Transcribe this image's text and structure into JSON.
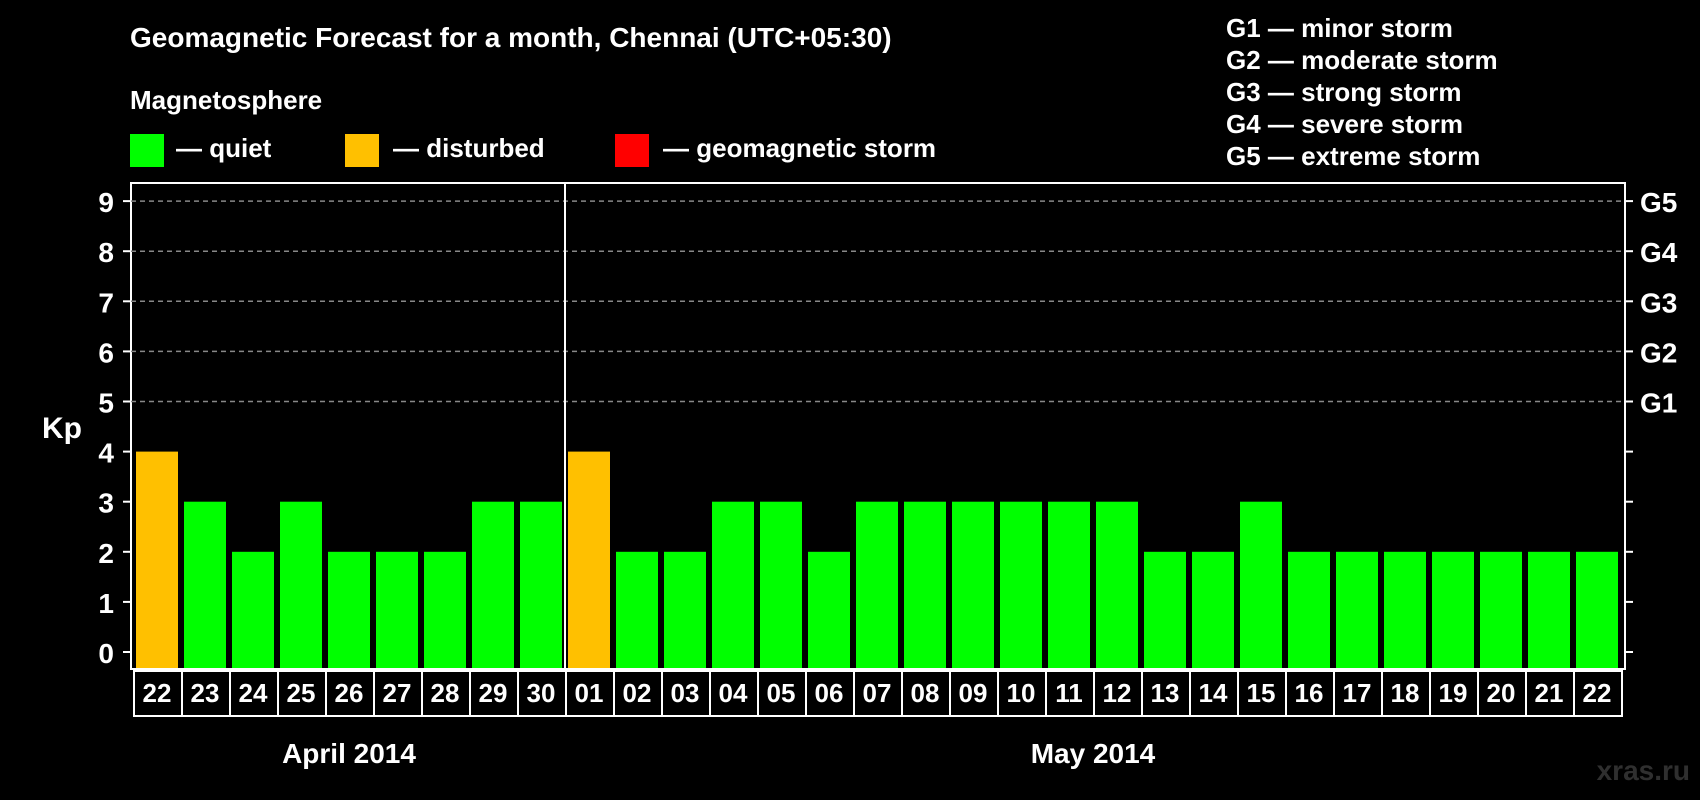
{
  "title": "Geomagnetic Forecast for a month, Chennai (UTC+05:30)",
  "magnetosphere_label": "Magnetosphere",
  "legend": [
    {
      "key": "quiet",
      "label": "— quiet",
      "color": "#00FF00"
    },
    {
      "key": "disturbed",
      "label": "— disturbed",
      "color": "#FFC000"
    },
    {
      "key": "storm",
      "label": "— geomagnetic storm",
      "color": "#FF0000"
    }
  ],
  "storm_legend": [
    "G1 — minor storm",
    "G2 — moderate storm",
    "G3 — strong storm",
    "G4 — severe storm",
    "G5 — extreme storm"
  ],
  "watermark": "xras.ru",
  "chart_data": {
    "type": "bar",
    "ylabel": "Kp",
    "ylim": [
      0,
      9
    ],
    "yticks": [
      "0",
      "1",
      "2",
      "3",
      "4",
      "5",
      "6",
      "7",
      "8",
      "9"
    ],
    "right_ticks": [
      {
        "kp": 5,
        "label": "G1"
      },
      {
        "kp": 6,
        "label": "G2"
      },
      {
        "kp": 7,
        "label": "G3"
      },
      {
        "kp": 8,
        "label": "G4"
      },
      {
        "kp": 9,
        "label": "G5"
      }
    ],
    "grid": "dashed horizontal at Kp 5-9",
    "months": [
      {
        "label": "April 2014",
        "start_index": 0,
        "end_index": 8
      },
      {
        "label": "May 2014",
        "start_index": 9,
        "end_index": 30
      }
    ],
    "categories": [
      "22",
      "23",
      "24",
      "25",
      "26",
      "27",
      "28",
      "29",
      "30",
      "01",
      "02",
      "03",
      "04",
      "05",
      "06",
      "07",
      "08",
      "09",
      "10",
      "11",
      "12",
      "13",
      "14",
      "15",
      "16",
      "17",
      "18",
      "19",
      "20",
      "21",
      "22"
    ],
    "values": [
      4,
      3,
      2,
      3,
      2,
      2,
      2,
      3,
      3,
      4,
      2,
      2,
      3,
      3,
      2,
      3,
      3,
      3,
      3,
      3,
      3,
      2,
      2,
      3,
      2,
      2,
      2,
      2,
      2,
      2,
      2
    ],
    "bar_colors": [
      "#FFC000",
      "#00FF00",
      "#00FF00",
      "#00FF00",
      "#00FF00",
      "#00FF00",
      "#00FF00",
      "#00FF00",
      "#00FF00",
      "#FFC000",
      "#00FF00",
      "#00FF00",
      "#00FF00",
      "#00FF00",
      "#00FF00",
      "#00FF00",
      "#00FF00",
      "#00FF00",
      "#00FF00",
      "#00FF00",
      "#00FF00",
      "#00FF00",
      "#00FF00",
      "#00FF00",
      "#00FF00",
      "#00FF00",
      "#00FF00",
      "#00FF00",
      "#00FF00",
      "#00FF00",
      "#00FF00"
    ]
  }
}
